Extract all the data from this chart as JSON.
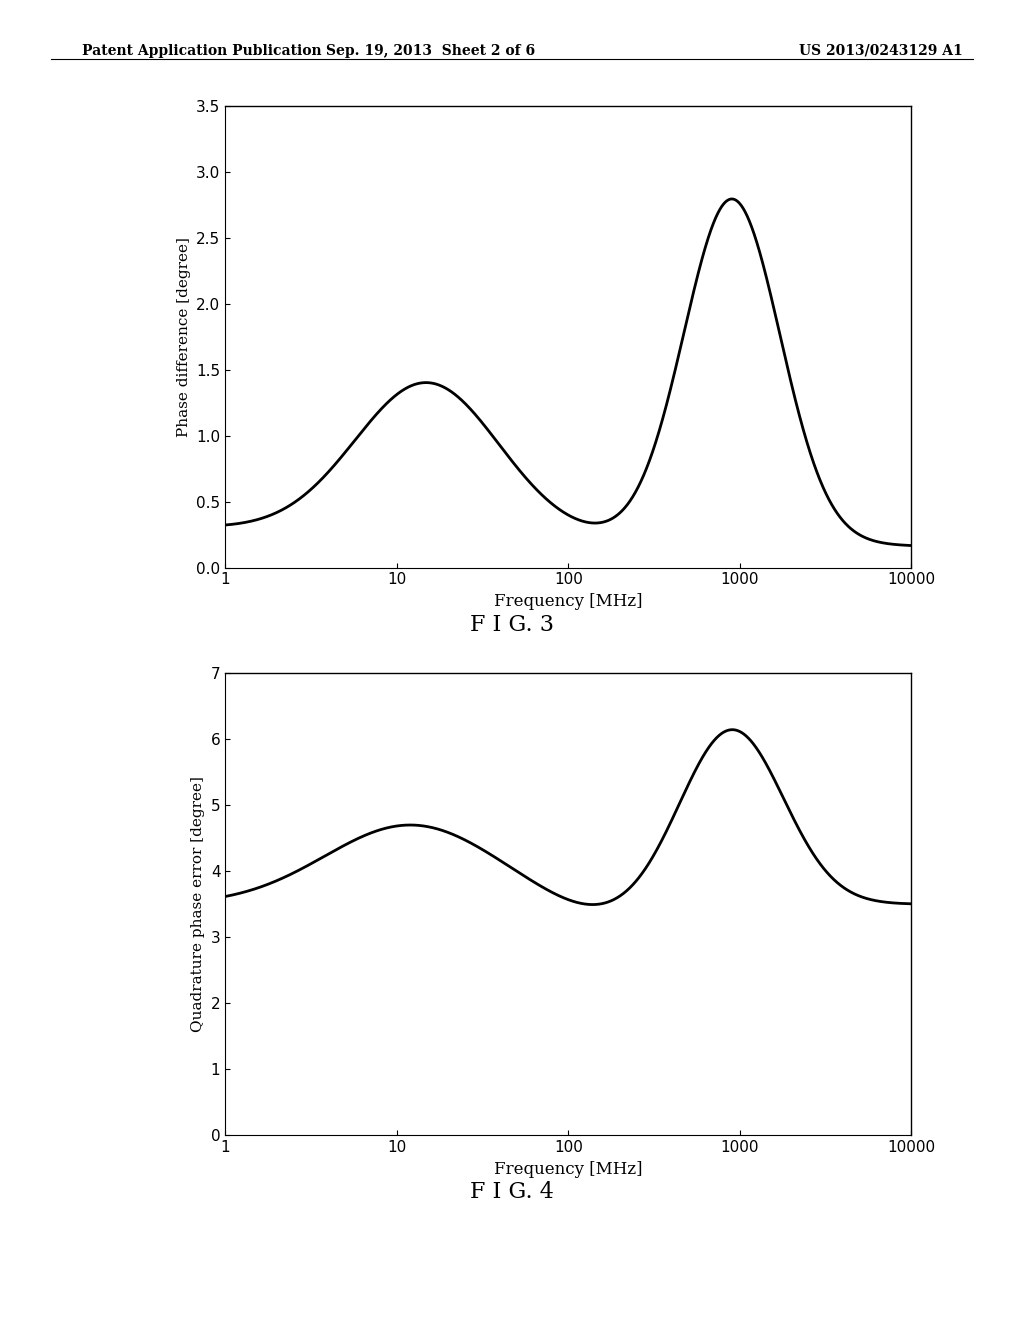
{
  "header_left": "Patent Application Publication",
  "header_center": "Sep. 19, 2013  Sheet 2 of 6",
  "header_right": "US 2013/0243129 A1",
  "fig3_title": "F I G. 3",
  "fig4_title": "F I G. 4",
  "fig3_ylabel": "Phase difference [degree]",
  "fig3_xlabel": "Frequency [MHz]",
  "fig3_ylim": [
    0,
    3.5
  ],
  "fig3_yticks": [
    0,
    0.5,
    1,
    1.5,
    2,
    2.5,
    3,
    3.5
  ],
  "fig3_xlim": [
    1,
    10000
  ],
  "fig4_ylabel": "Quadrature phase error [degree]",
  "fig4_xlabel": "Frequency [MHz]",
  "fig4_ylim": [
    0,
    7
  ],
  "fig4_yticks": [
    0,
    1,
    2,
    3,
    4,
    5,
    6,
    7
  ],
  "fig4_xlim": [
    1,
    10000
  ],
  "background_color": "#ffffff",
  "line_color": "#000000",
  "line_width": 2.0
}
